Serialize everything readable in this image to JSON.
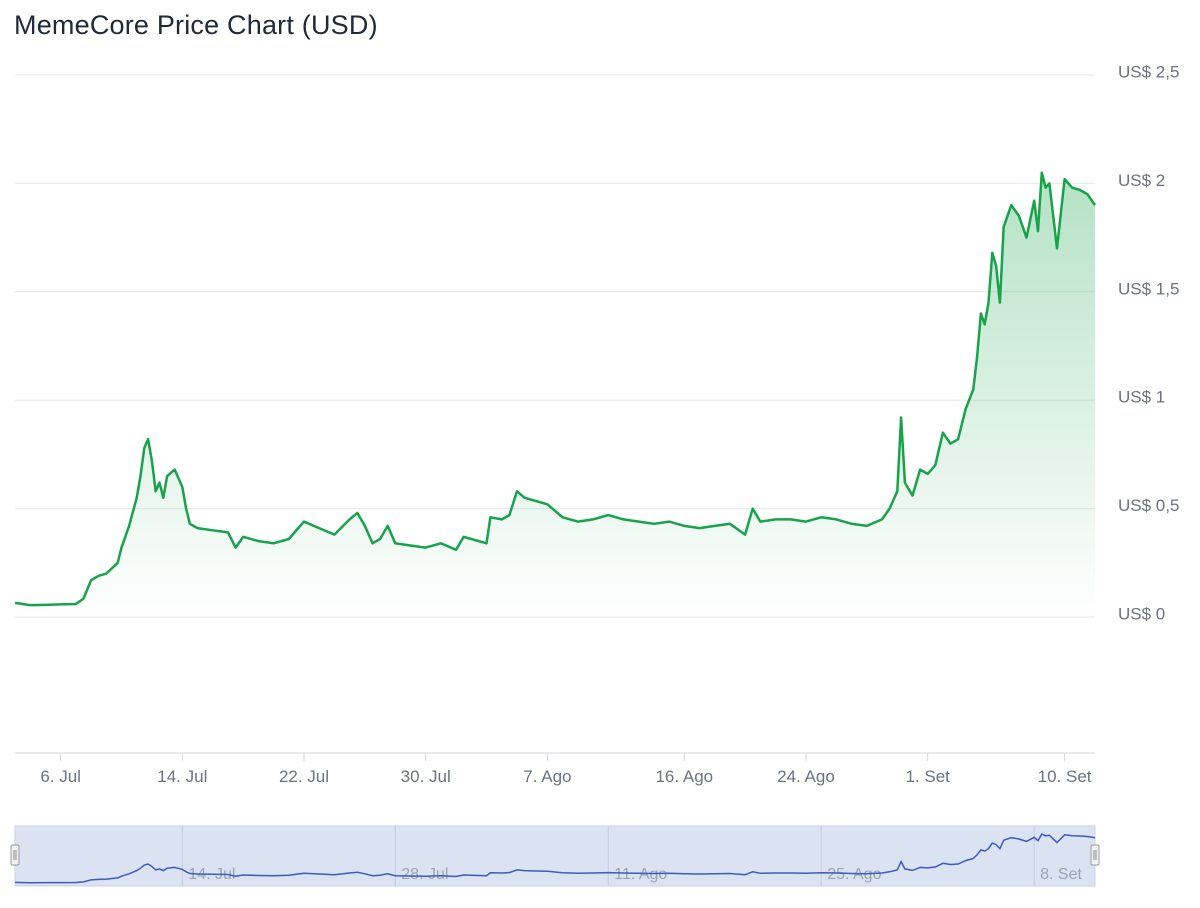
{
  "title": "MemeCore Price Chart (USD)",
  "colors": {
    "line": "#16a34a",
    "area_top": "#16a34a",
    "grid": "#e5e7eb",
    "axis_text": "#6b7280",
    "navigator_fill": "#dbe2f2",
    "navigator_line": "#3b5bc4",
    "navigator_border": "#c9d2ea"
  },
  "chart_data": {
    "type": "area",
    "ylim": [
      0,
      2.5
    ],
    "y_ticks": [
      {
        "value": 0,
        "label": "US$ 0"
      },
      {
        "value": 0.5,
        "label": "US$ 0,5"
      },
      {
        "value": 1,
        "label": "US$ 1"
      },
      {
        "value": 1.5,
        "label": "US$ 1,5"
      },
      {
        "value": 2,
        "label": "US$ 2"
      },
      {
        "value": 2.5,
        "label": "US$ 2,5"
      }
    ],
    "x_range": [
      "2025-07-03",
      "2025-09-12"
    ],
    "x_ticks": [
      {
        "date": "2025-07-06",
        "label": "6. Jul"
      },
      {
        "date": "2025-07-14",
        "label": "14. Jul"
      },
      {
        "date": "2025-07-22",
        "label": "22. Jul"
      },
      {
        "date": "2025-07-30",
        "label": "30. Jul"
      },
      {
        "date": "2025-08-07",
        "label": "7. Ago"
      },
      {
        "date": "2025-08-16",
        "label": "16. Ago"
      },
      {
        "date": "2025-08-24",
        "label": "24. Ago"
      },
      {
        "date": "2025-09-01",
        "label": "1. Set"
      },
      {
        "date": "2025-09-10",
        "label": "10. Set"
      }
    ],
    "series": [
      {
        "points": [
          [
            "2025-07-03",
            0.065
          ],
          [
            "2025-07-04",
            0.055
          ],
          [
            "2025-07-05",
            0.056
          ],
          [
            "2025-07-06",
            0.058
          ],
          [
            "2025-07-07",
            0.06
          ],
          [
            "2025-07-07T12",
            0.085
          ],
          [
            "2025-07-08",
            0.17
          ],
          [
            "2025-07-08T12",
            0.19
          ],
          [
            "2025-07-09",
            0.2
          ],
          [
            "2025-07-09T18",
            0.25
          ],
          [
            "2025-07-10",
            0.32
          ],
          [
            "2025-07-10T12",
            0.42
          ],
          [
            "2025-07-11",
            0.55
          ],
          [
            "2025-07-11T06",
            0.65
          ],
          [
            "2025-07-11T12",
            0.78
          ],
          [
            "2025-07-11T18",
            0.82
          ],
          [
            "2025-07-12",
            0.72
          ],
          [
            "2025-07-12T06",
            0.58
          ],
          [
            "2025-07-12T12",
            0.62
          ],
          [
            "2025-07-12T18",
            0.55
          ],
          [
            "2025-07-13",
            0.65
          ],
          [
            "2025-07-13T12",
            0.68
          ],
          [
            "2025-07-14",
            0.6
          ],
          [
            "2025-07-14T06",
            0.5
          ],
          [
            "2025-07-14T12",
            0.43
          ],
          [
            "2025-07-15",
            0.41
          ],
          [
            "2025-07-16",
            0.4
          ],
          [
            "2025-07-17",
            0.39
          ],
          [
            "2025-07-17T12",
            0.32
          ],
          [
            "2025-07-18",
            0.37
          ],
          [
            "2025-07-19",
            0.35
          ],
          [
            "2025-07-20",
            0.34
          ],
          [
            "2025-07-21",
            0.36
          ],
          [
            "2025-07-22",
            0.44
          ],
          [
            "2025-07-23",
            0.41
          ],
          [
            "2025-07-24",
            0.38
          ],
          [
            "2025-07-25",
            0.45
          ],
          [
            "2025-07-25T12",
            0.48
          ],
          [
            "2025-07-26",
            0.42
          ],
          [
            "2025-07-26T12",
            0.34
          ],
          [
            "2025-07-27",
            0.36
          ],
          [
            "2025-07-27T12",
            0.42
          ],
          [
            "2025-07-28",
            0.34
          ],
          [
            "2025-07-29",
            0.33
          ],
          [
            "2025-07-30",
            0.32
          ],
          [
            "2025-07-31",
            0.34
          ],
          [
            "2025-08-01",
            0.31
          ],
          [
            "2025-08-01T12",
            0.37
          ],
          [
            "2025-08-02",
            0.36
          ],
          [
            "2025-08-03",
            0.34
          ],
          [
            "2025-08-03T06",
            0.46
          ],
          [
            "2025-08-04",
            0.45
          ],
          [
            "2025-08-04T12",
            0.47
          ],
          [
            "2025-08-05",
            0.58
          ],
          [
            "2025-08-05T12",
            0.55
          ],
          [
            "2025-08-06",
            0.54
          ],
          [
            "2025-08-07",
            0.52
          ],
          [
            "2025-08-08",
            0.46
          ],
          [
            "2025-08-09",
            0.44
          ],
          [
            "2025-08-10",
            0.45
          ],
          [
            "2025-08-11",
            0.47
          ],
          [
            "2025-08-12",
            0.45
          ],
          [
            "2025-08-13",
            0.44
          ],
          [
            "2025-08-14",
            0.43
          ],
          [
            "2025-08-15",
            0.44
          ],
          [
            "2025-08-16",
            0.42
          ],
          [
            "2025-08-17",
            0.41
          ],
          [
            "2025-08-18",
            0.42
          ],
          [
            "2025-08-19",
            0.43
          ],
          [
            "2025-08-20",
            0.38
          ],
          [
            "2025-08-20T12",
            0.5
          ],
          [
            "2025-08-21",
            0.44
          ],
          [
            "2025-08-22",
            0.45
          ],
          [
            "2025-08-23",
            0.45
          ],
          [
            "2025-08-24",
            0.44
          ],
          [
            "2025-08-25",
            0.46
          ],
          [
            "2025-08-26",
            0.45
          ],
          [
            "2025-08-27",
            0.43
          ],
          [
            "2025-08-28",
            0.42
          ],
          [
            "2025-08-29",
            0.45
          ],
          [
            "2025-08-29T12",
            0.5
          ],
          [
            "2025-08-30",
            0.58
          ],
          [
            "2025-08-30T06",
            0.92
          ],
          [
            "2025-08-30T12",
            0.62
          ],
          [
            "2025-08-31",
            0.56
          ],
          [
            "2025-08-31T12",
            0.68
          ],
          [
            "2025-09-01",
            0.66
          ],
          [
            "2025-09-01T12",
            0.7
          ],
          [
            "2025-09-02",
            0.85
          ],
          [
            "2025-09-02T12",
            0.8
          ],
          [
            "2025-09-03",
            0.82
          ],
          [
            "2025-09-03T12",
            0.96
          ],
          [
            "2025-09-04",
            1.05
          ],
          [
            "2025-09-04T06",
            1.2
          ],
          [
            "2025-09-04T12",
            1.4
          ],
          [
            "2025-09-04T18",
            1.35
          ],
          [
            "2025-09-05",
            1.45
          ],
          [
            "2025-09-05T06",
            1.68
          ],
          [
            "2025-09-05T12",
            1.62
          ],
          [
            "2025-09-05T18",
            1.45
          ],
          [
            "2025-09-06",
            1.8
          ],
          [
            "2025-09-06T12",
            1.9
          ],
          [
            "2025-09-07",
            1.85
          ],
          [
            "2025-09-07T12",
            1.75
          ],
          [
            "2025-09-08",
            1.92
          ],
          [
            "2025-09-08T06",
            1.78
          ],
          [
            "2025-09-08T12",
            2.05
          ],
          [
            "2025-09-08T18",
            1.98
          ],
          [
            "2025-09-09",
            2.0
          ],
          [
            "2025-09-09T12",
            1.7
          ],
          [
            "2025-09-10",
            2.02
          ],
          [
            "2025-09-10T12",
            1.98
          ],
          [
            "2025-09-11",
            1.97
          ],
          [
            "2025-09-11T12",
            1.95
          ],
          [
            "2025-09-12",
            1.9
          ]
        ]
      }
    ],
    "navigator": {
      "x_ticks": [
        {
          "date": "2025-07-14",
          "label": "14. Jul"
        },
        {
          "date": "2025-07-28",
          "label": "28. Jul"
        },
        {
          "date": "2025-08-11",
          "label": "11. Ago"
        },
        {
          "date": "2025-08-25",
          "label": "25. Ago"
        },
        {
          "date": "2025-09-08",
          "label": "8. Set"
        }
      ],
      "handle_icon": "grip-lines-icon"
    },
    "grid": true,
    "legend": false
  }
}
